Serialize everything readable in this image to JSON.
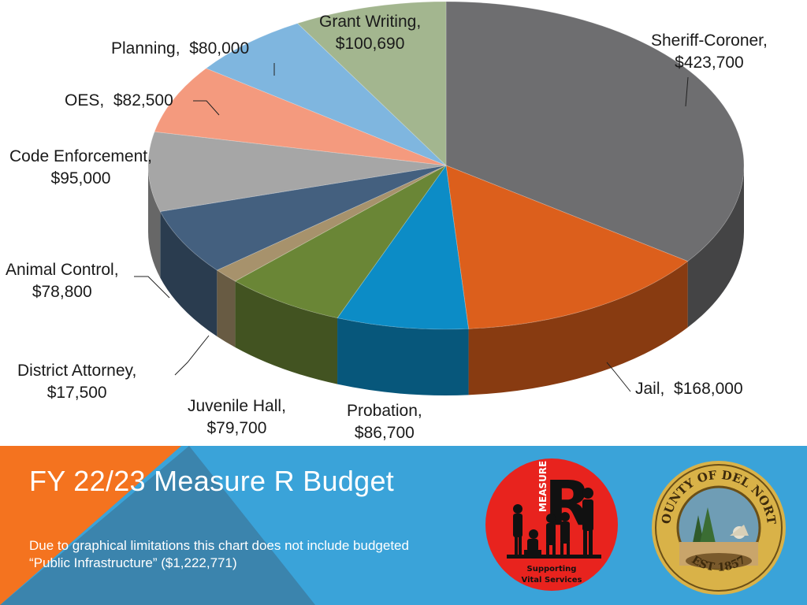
{
  "chart_data": {
    "type": "pie",
    "slices": [
      {
        "label": "Sheriff-Coroner",
        "value": 423700,
        "value_text": "$423,700",
        "color": "#6e6e70"
      },
      {
        "label": "Jail",
        "value": 168000,
        "value_text": "$168,000",
        "color": "#dc5f1c"
      },
      {
        "label": "Probation",
        "value": 86700,
        "value_text": "$86,700",
        "color": "#0c8cc6"
      },
      {
        "label": "Juvenile Hall",
        "value": 79700,
        "value_text": "$79,700",
        "color": "#6a8636"
      },
      {
        "label": "District Attorney",
        "value": 17500,
        "value_text": "$17,500",
        "color": "#a7926c"
      },
      {
        "label": "Animal Control",
        "value": 78800,
        "value_text": "$78,800",
        "color": "#44607f"
      },
      {
        "label": "Code Enforcement",
        "value": 95000,
        "value_text": "$95,000",
        "color": "#a6a6a6"
      },
      {
        "label": "OES",
        "value": 82500,
        "value_text": "$82,500",
        "color": "#f49a7e"
      },
      {
        "label": "Planning",
        "value": 80000,
        "value_text": "$80,000",
        "color": "#7fb6df"
      },
      {
        "label": "Grant Writing",
        "value": 100690,
        "value_text": "$100,690",
        "color": "#a3b68f"
      }
    ],
    "style": "3d",
    "legend": "none"
  },
  "banner": {
    "title": "FY 22/23 Measure R Budget",
    "note_line1": "Due to graphical limitations this chart does not include budgeted",
    "note_line2": "“Public Infrastructure” ($1,222,771)",
    "colors": {
      "blue": "#3aa3d9",
      "orange": "#f4731f",
      "steel": "#3b84ad"
    }
  },
  "logos": {
    "measure_r": {
      "letter": "R",
      "vertical_text": "MEASURE",
      "caption_line1": "Supporting",
      "caption_line2": "Vital Services",
      "color": "#e8231e"
    },
    "county_seal": {
      "top_text": "COUNTY OF DEL NORTE",
      "bottom_text": "EST 1857",
      "color": "#d9b248"
    }
  }
}
